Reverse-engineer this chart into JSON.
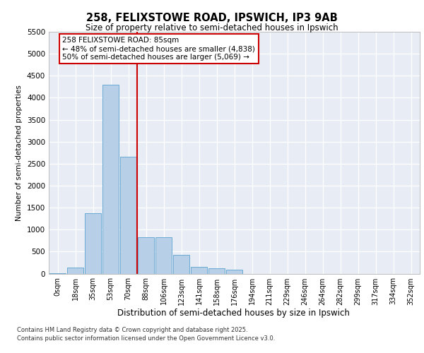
{
  "title_line1": "258, FELIXSTOWE ROAD, IPSWICH, IP3 9AB",
  "title_line2": "Size of property relative to semi-detached houses in Ipswich",
  "xlabel": "Distribution of semi-detached houses by size in Ipswich",
  "ylabel": "Number of semi-detached properties",
  "bin_labels": [
    "0sqm",
    "18sqm",
    "35sqm",
    "53sqm",
    "70sqm",
    "88sqm",
    "106sqm",
    "123sqm",
    "141sqm",
    "158sqm",
    "176sqm",
    "194sqm",
    "211sqm",
    "229sqm",
    "246sqm",
    "264sqm",
    "282sqm",
    "299sqm",
    "317sqm",
    "334sqm",
    "352sqm"
  ],
  "bar_values": [
    10,
    130,
    1380,
    4300,
    2650,
    820,
    820,
    420,
    160,
    120,
    90,
    0,
    0,
    0,
    0,
    0,
    0,
    0,
    0,
    0,
    0
  ],
  "bar_color": "#b8cfe8",
  "bar_edge_color": "#6aaad4",
  "ylim_max": 5500,
  "yticks": [
    0,
    500,
    1000,
    1500,
    2000,
    2500,
    3000,
    3500,
    4000,
    4500,
    5000,
    5500
  ],
  "vline_x": 4.5,
  "vline_color": "#cc0000",
  "ann_title": "258 FELIXSTOWE ROAD: 85sqm",
  "ann_smaller": "← 48% of semi-detached houses are smaller (4,838)",
  "ann_larger": "50% of semi-detached houses are larger (5,069) →",
  "ann_box_fc": "#ffffff",
  "ann_box_ec": "#cc0000",
  "footer1": "Contains HM Land Registry data © Crown copyright and database right 2025.",
  "footer2": "Contains public sector information licensed under the Open Government Licence v3.0.",
  "axes_bg": "#e8edf5"
}
